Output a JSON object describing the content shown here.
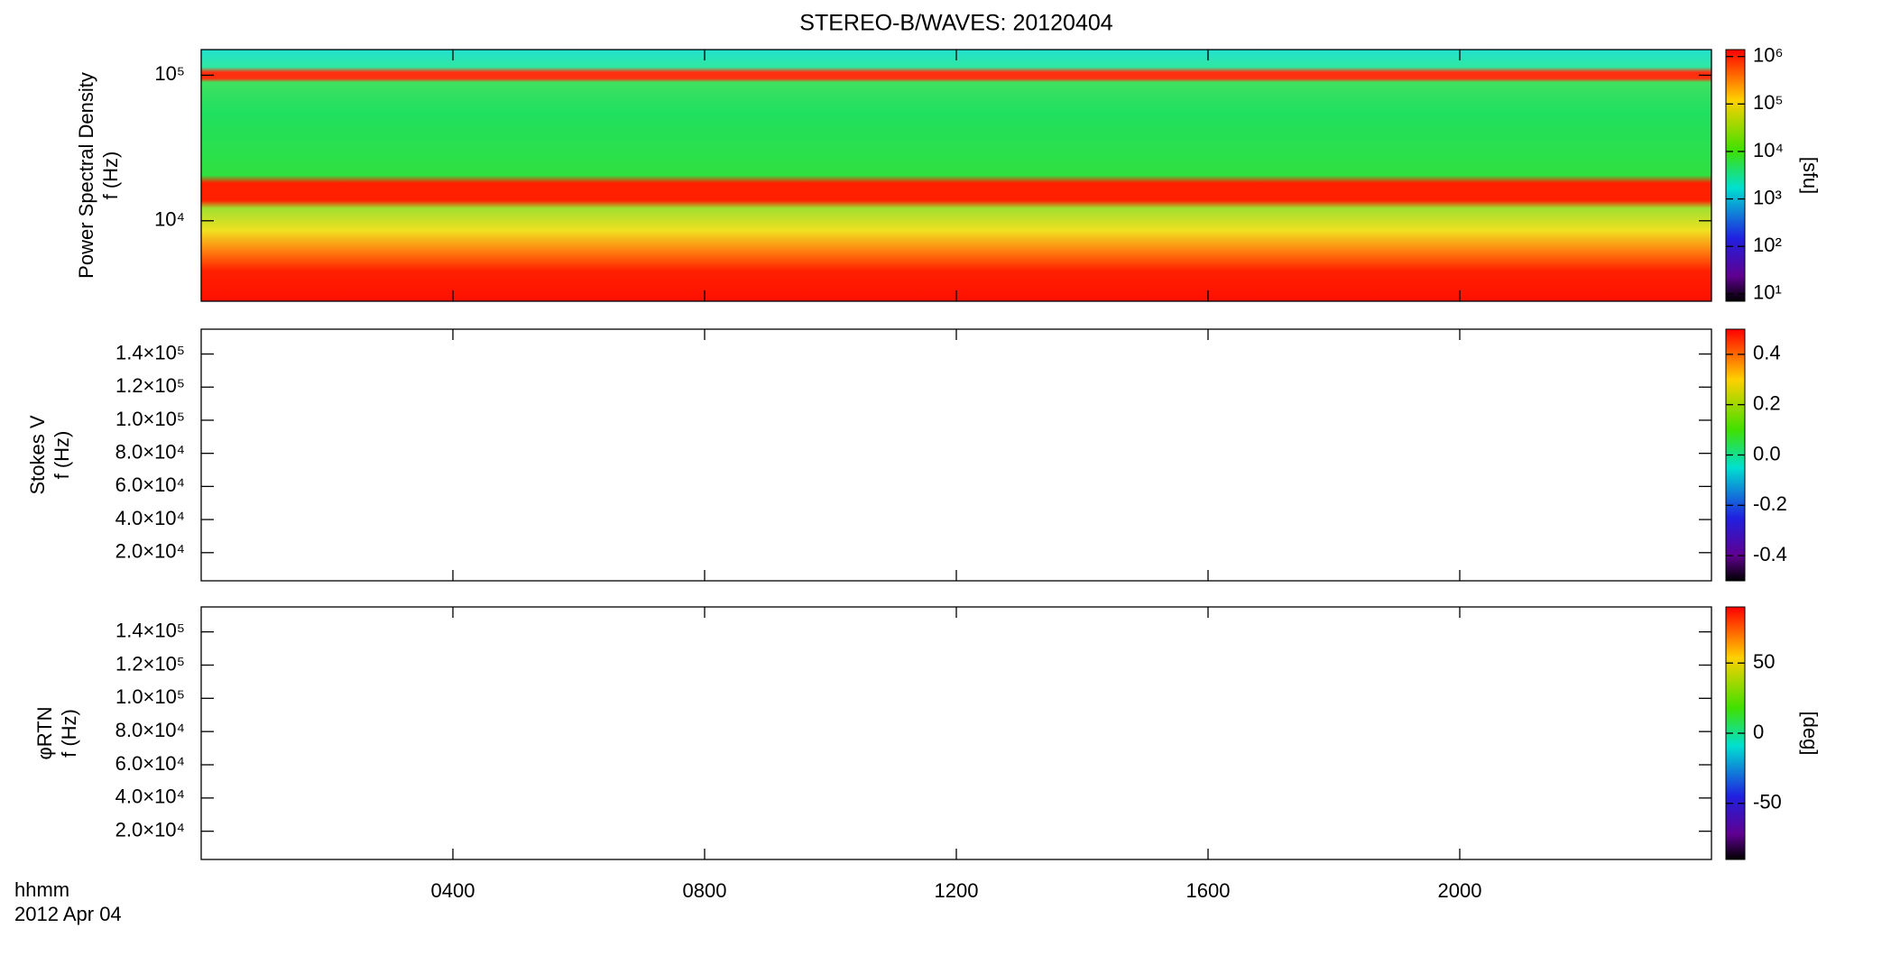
{
  "chart_data": [
    {
      "type": "spectrogram",
      "title": "STEREO-B/WAVES: 20120404",
      "ylabel": [
        "Power Spectral Density",
        "f (Hz)"
      ],
      "log_y": true,
      "ylim": [
        2800,
        150000
      ],
      "yticks": [
        {
          "value": 10000,
          "label": "10⁴"
        },
        {
          "value": 100000,
          "label": "10⁵"
        }
      ],
      "colorbar": {
        "log": true,
        "lim": [
          7,
          1400000
        ],
        "label": "[sfu]",
        "ticks": [
          {
            "value": 10,
            "label": "10¹"
          },
          {
            "value": 100,
            "label": "10²"
          },
          {
            "value": 1000,
            "label": "10³"
          },
          {
            "value": 10000,
            "label": "10⁴"
          },
          {
            "value": 100000,
            "label": "10⁵"
          },
          {
            "value": 1000000,
            "label": "10⁶"
          }
        ]
      }
    },
    {
      "type": "spectrogram",
      "ylabel": [
        "Stokes V",
        "f (Hz)"
      ],
      "log_y": false,
      "ylim": [
        3000,
        155000
      ],
      "yticks": [
        {
          "value": 20000,
          "label": "2.0×10⁴"
        },
        {
          "value": 40000,
          "label": "4.0×10⁴"
        },
        {
          "value": 60000,
          "label": "6.0×10⁴"
        },
        {
          "value": 80000,
          "label": "8.0×10⁴"
        },
        {
          "value": 100000,
          "label": "1.0×10⁵"
        },
        {
          "value": 120000,
          "label": "1.2×10⁵"
        },
        {
          "value": 140000,
          "label": "1.4×10⁵"
        }
      ],
      "colorbar": {
        "log": false,
        "lim": [
          -0.5,
          0.5
        ],
        "ticks": [
          {
            "value": -0.4,
            "label": "-0.4"
          },
          {
            "value": -0.2,
            "label": "-0.2"
          },
          {
            "value": 0,
            "label": "0.0"
          },
          {
            "value": 0.2,
            "label": "0.2"
          },
          {
            "value": 0.4,
            "label": "0.4"
          }
        ]
      }
    },
    {
      "type": "spectrogram",
      "ylabel": [
        "φRTN",
        "f (Hz)"
      ],
      "log_y": false,
      "ylim": [
        3000,
        155000
      ],
      "yticks": [
        {
          "value": 20000,
          "label": "2.0×10⁴"
        },
        {
          "value": 40000,
          "label": "4.0×10⁴"
        },
        {
          "value": 60000,
          "label": "6.0×10⁴"
        },
        {
          "value": 80000,
          "label": "8.0×10⁴"
        },
        {
          "value": 100000,
          "label": "1.0×10⁵"
        },
        {
          "value": 120000,
          "label": "1.2×10⁵"
        },
        {
          "value": 140000,
          "label": "1.4×10⁵"
        }
      ],
      "colorbar": {
        "log": false,
        "lim": [
          -90,
          90
        ],
        "label": "[deg]",
        "ticks": [
          -50,
          0,
          50
        ]
      },
      "xlim": [
        0,
        24
      ],
      "xticks": [
        {
          "value": 4,
          "label": "0400"
        },
        {
          "value": 8,
          "label": "0800"
        },
        {
          "value": 12,
          "label": "1200"
        },
        {
          "value": 16,
          "label": "1600"
        },
        {
          "value": 20,
          "label": "2000"
        }
      ],
      "xlabel": [
        "hhmm",
        "2012 Apr 04"
      ]
    }
  ]
}
